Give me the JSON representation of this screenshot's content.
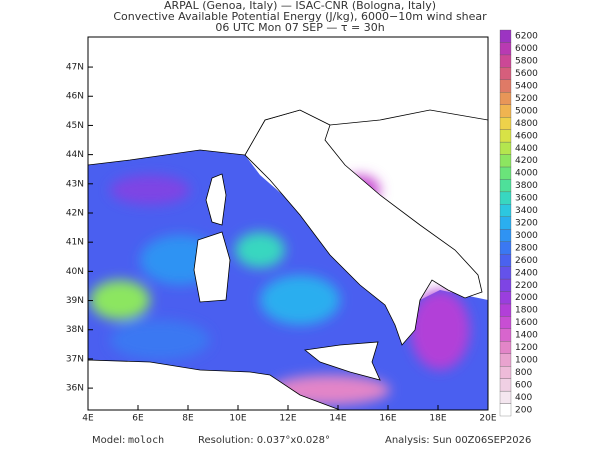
{
  "header": {
    "lines": [
      "ARPAL (Genoa, Italy)  —  ISAC-CNR (Bologna, Italy)",
      "Convective Available Potential Energy (J/kg), 6000−10m wind shear",
      "06 UTC Mon 07 SEP  —  τ = 30h"
    ]
  },
  "map": {
    "xlim": [
      4,
      20
    ],
    "ylim": [
      35.25,
      48.03
    ],
    "xticks": [
      {
        "value": 4,
        "label": "4E"
      },
      {
        "value": 6,
        "label": "6E"
      },
      {
        "value": 8,
        "label": "8E"
      },
      {
        "value": 10,
        "label": "10E"
      },
      {
        "value": 12,
        "label": "12E"
      },
      {
        "value": 14,
        "label": "14E"
      },
      {
        "value": 16,
        "label": "16E"
      },
      {
        "value": 18,
        "label": "18E"
      },
      {
        "value": 20,
        "label": "20E"
      }
    ],
    "yticks": [
      {
        "value": 36,
        "label": "36N"
      },
      {
        "value": 37,
        "label": "37N"
      },
      {
        "value": 38,
        "label": "38N"
      },
      {
        "value": 39,
        "label": "39N"
      },
      {
        "value": 40,
        "label": "40N"
      },
      {
        "value": 41,
        "label": "41N"
      },
      {
        "value": 42,
        "label": "42N"
      },
      {
        "value": 43,
        "label": "43N"
      },
      {
        "value": 44,
        "label": "44N"
      },
      {
        "value": 45,
        "label": "45N"
      },
      {
        "value": 46,
        "label": "46N"
      },
      {
        "value": 47,
        "label": "47N"
      }
    ]
  },
  "colorbar": {
    "ticks": [
      200,
      400,
      600,
      800,
      1000,
      1200,
      1400,
      1600,
      1800,
      2000,
      2200,
      2400,
      2600,
      2800,
      3000,
      3200,
      3400,
      3600,
      3800,
      4000,
      4200,
      4400,
      4600,
      4800,
      5000,
      5200,
      5400,
      5600,
      5800,
      6000,
      6200
    ],
    "colors": [
      "#ffffff",
      "#f4e6ef",
      "#f0d0e4",
      "#eebbd9",
      "#e9a3cf",
      "#e385c8",
      "#d865cd",
      "#c84ed3",
      "#b23fd8",
      "#9a3ede",
      "#7e44e4",
      "#6452ea",
      "#4a62ef",
      "#3a78f2",
      "#2f93f3",
      "#2aaeef",
      "#2cc7e0",
      "#38d7c0",
      "#4ee09a",
      "#6ae47a",
      "#8ce660",
      "#b4e64e",
      "#d8e246",
      "#eed24a",
      "#f0b450",
      "#e89658",
      "#df7a66",
      "#d65e7c",
      "#cc4896",
      "#b83ab2",
      "#9c34c2"
    ]
  },
  "footer": {
    "model_label": "Model:",
    "model": "moloch",
    "resolution": "Resolution: 0.037°x0.028°",
    "analysis": "Analysis: Sun 00Z06SEP2026"
  }
}
